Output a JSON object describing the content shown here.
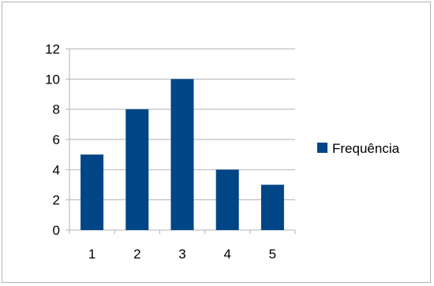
{
  "chart_data": {
    "type": "bar",
    "categories": [
      "1",
      "2",
      "3",
      "4",
      "5"
    ],
    "series": [
      {
        "name": "Frequência",
        "values": [
          5,
          8,
          10,
          4,
          3
        ],
        "color": "#004586"
      }
    ],
    "ylim": [
      0,
      12
    ],
    "yticks": [
      0,
      2,
      4,
      6,
      8,
      10,
      12
    ],
    "grid": true,
    "legend_position": "right",
    "title": "",
    "xlabel": "",
    "ylabel": ""
  }
}
